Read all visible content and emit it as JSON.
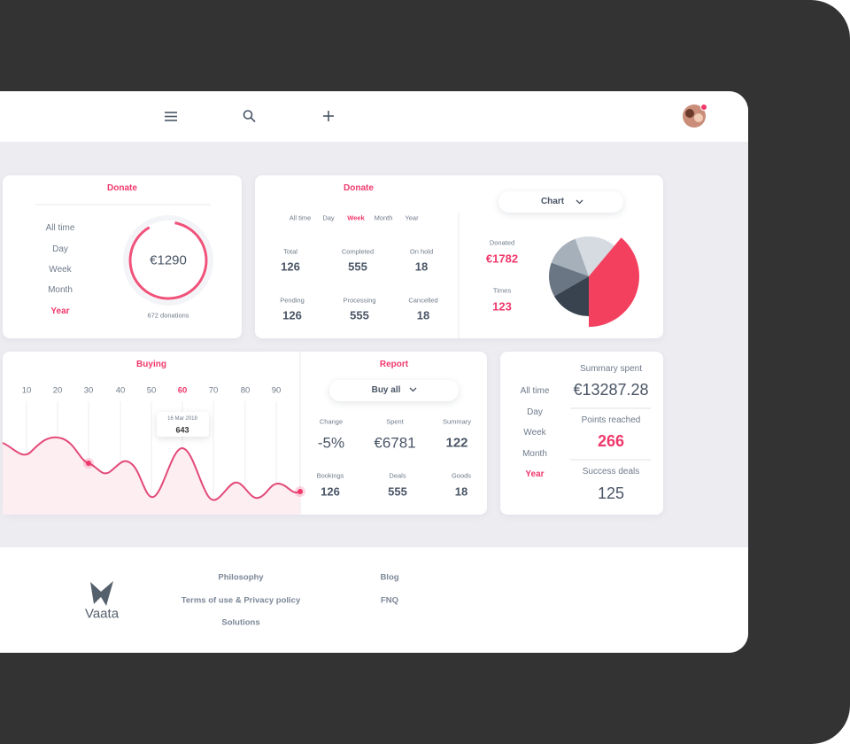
{
  "donate_card": {
    "title": "Donate",
    "periods": [
      "All time",
      "Day",
      "Week",
      "Month",
      "Year"
    ],
    "selected_period": 4,
    "amount": "€1290",
    "note": "672 donations"
  },
  "donate_stats": {
    "title": "Donate",
    "periods": [
      "All time",
      "Day",
      "Week",
      "Month",
      "Year"
    ],
    "selected_period": 2,
    "stats": [
      {
        "label": "Total",
        "value": 126
      },
      {
        "label": "Completed",
        "value": 555
      },
      {
        "label": "On hold",
        "value": 18
      },
      {
        "label": "Pending",
        "value": 126
      },
      {
        "label": "Processing",
        "value": 555
      },
      {
        "label": "Cancelled",
        "value": 18
      }
    ],
    "dropdown": "Chart",
    "donated_label": "Donated",
    "donated": "€1782",
    "times_label": "Times",
    "times": 123
  },
  "buying": {
    "title": "Buying",
    "ticks": [
      10,
      20,
      30,
      40,
      50,
      60,
      70,
      80,
      90
    ],
    "selected_tick": 5,
    "tooltip": {
      "date": "16 Mar 2018",
      "value": 643
    }
  },
  "report": {
    "title": "Report",
    "dropdown": "Buy all",
    "stats": [
      {
        "label": "Change",
        "value": "-5%"
      },
      {
        "label": "Spent",
        "value": "€6781"
      },
      {
        "label": "Summary",
        "value": 122
      },
      {
        "label": "Bookings",
        "value": 126
      },
      {
        "label": "Deals",
        "value": 555
      },
      {
        "label": "Goods",
        "value": 18
      }
    ]
  },
  "summary": {
    "periods": [
      "All time",
      "Day",
      "Week",
      "Month",
      "Year"
    ],
    "selected_period": 4,
    "items": [
      {
        "label": "Summary spent",
        "value": "€13287.28"
      },
      {
        "label": "Points reached",
        "value": 266
      },
      {
        "label": "Success deals",
        "value": 125
      }
    ]
  },
  "footer": {
    "logo": "Vaata",
    "links": [
      [
        "Philosophy",
        "Terms of use & Privacy policy",
        "Solutions"
      ],
      [
        "Blog",
        "FNQ"
      ]
    ]
  }
}
